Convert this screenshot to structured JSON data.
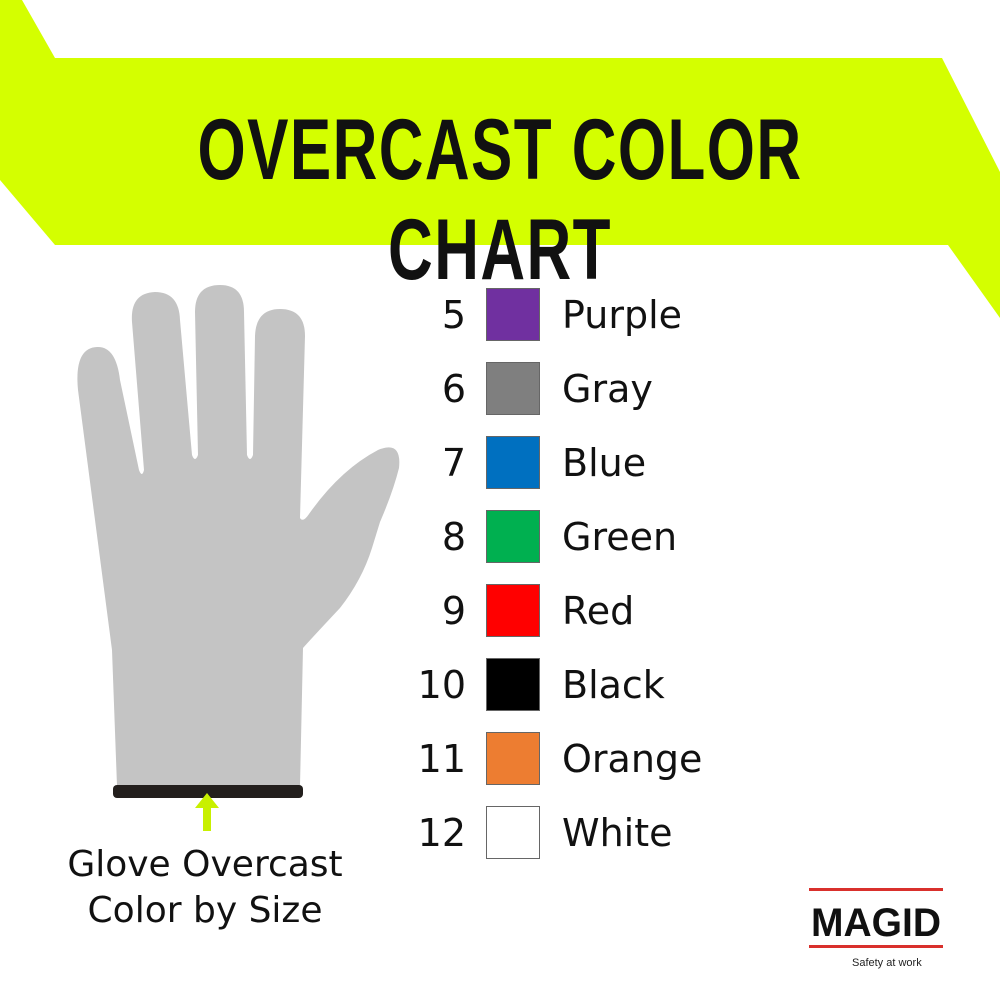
{
  "title": "OVERCAST COLOR CHART",
  "colors": {
    "banner": "#d4ff00",
    "glove": "#c4c4c4",
    "cuff": "#231f1d",
    "arrow": "#c8f000"
  },
  "sizes": [
    {
      "size": "5",
      "color_name": "Purple",
      "hex": "#7030a0"
    },
    {
      "size": "6",
      "color_name": "Gray",
      "hex": "#7f7f7f"
    },
    {
      "size": "7",
      "color_name": "Blue",
      "hex": "#0070c0"
    },
    {
      "size": "8",
      "color_name": "Green",
      "hex": "#00b050"
    },
    {
      "size": "9",
      "color_name": "Red",
      "hex": "#ff0000"
    },
    {
      "size": "10",
      "color_name": "Black",
      "hex": "#000000"
    },
    {
      "size": "11",
      "color_name": "Orange",
      "hex": "#ed7d31"
    },
    {
      "size": "12",
      "color_name": "White",
      "hex": "#ffffff"
    }
  ],
  "caption": {
    "line1": "Glove Overcast",
    "line2": "Color by Size"
  },
  "logo": {
    "brand": "MAGID",
    "tagline": "Safety at work"
  }
}
